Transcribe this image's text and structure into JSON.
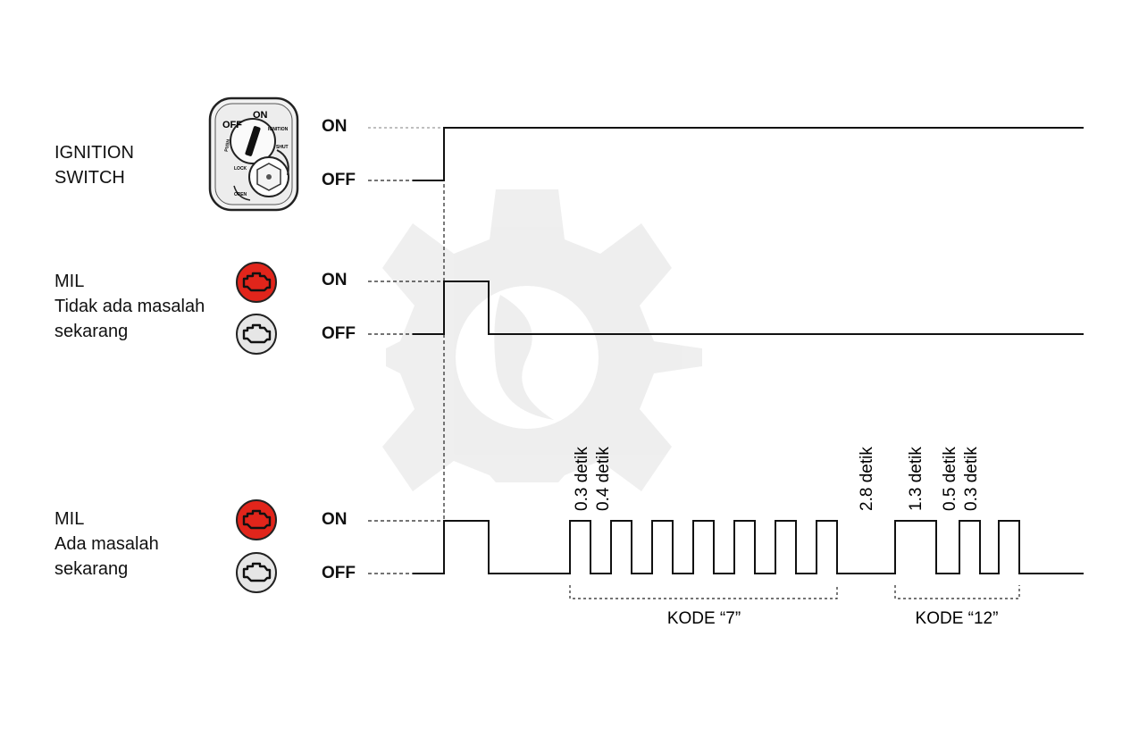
{
  "rows": [
    {
      "label_lines": [
        "IGNITION",
        "SWITCH"
      ],
      "on": "ON",
      "off": "OFF"
    },
    {
      "label_lines": [
        "MIL",
        "Tidak ada masalah",
        "sekarang"
      ],
      "on": "ON",
      "off": "OFF"
    },
    {
      "label_lines": [
        "MIL",
        "Ada masalah",
        "sekarang"
      ],
      "on": "ON",
      "off": "OFF"
    }
  ],
  "ignition_switch": {
    "positions": [
      "OFF",
      "ON",
      "IGNITION",
      "SHUT",
      "LOCK",
      "PUSH",
      "OPEN"
    ]
  },
  "timing_labels": [
    "0.3 detik",
    "0.4 detik",
    "2.8 detik",
    "1.3 detik",
    "0.5 detik",
    "0.3 detik"
  ],
  "code_labels": [
    "KODE “7”",
    "KODE “12”"
  ],
  "icons": {
    "mil_on_color": "#e1251b",
    "mil_off_color": "#e6e6e6"
  }
}
